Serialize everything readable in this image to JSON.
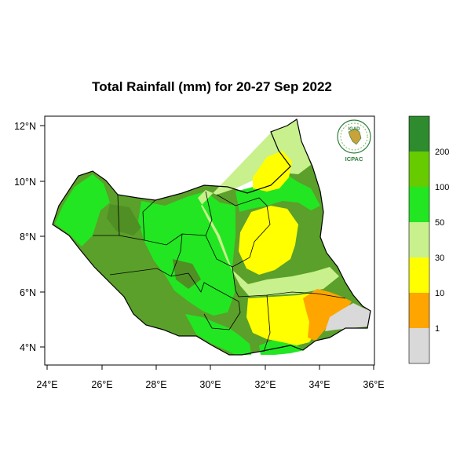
{
  "title": "Total Rainfall (mm) for 20-27 Sep 2022",
  "axes": {
    "x_ticks": [
      "24°E",
      "26°E",
      "28°E",
      "30°E",
      "32°E",
      "34°E",
      "36°E"
    ],
    "y_ticks": [
      "12°N",
      "10°N",
      "8°N",
      "6°N",
      "4°N"
    ]
  },
  "legend": {
    "labels": [
      "200",
      "100",
      "50",
      "30",
      "10",
      "1"
    ],
    "colors": [
      "#2e8b2e",
      "#66cc00",
      "#22e622",
      "#c8f08c",
      "#ffff00",
      "#ffa500",
      "#d9d9d9"
    ]
  },
  "logo": {
    "top_text": "IGAD",
    "bottom_text": "ICPAC",
    "icon": "igad-icpac-logo"
  },
  "colors": {
    "dark_green": "#5aa02a",
    "green": "#22e622",
    "light_green": "#c8f08c",
    "yellow": "#ffff00",
    "orange": "#ffa500",
    "grey": "#d9d9d9",
    "boundary": "#000000"
  }
}
